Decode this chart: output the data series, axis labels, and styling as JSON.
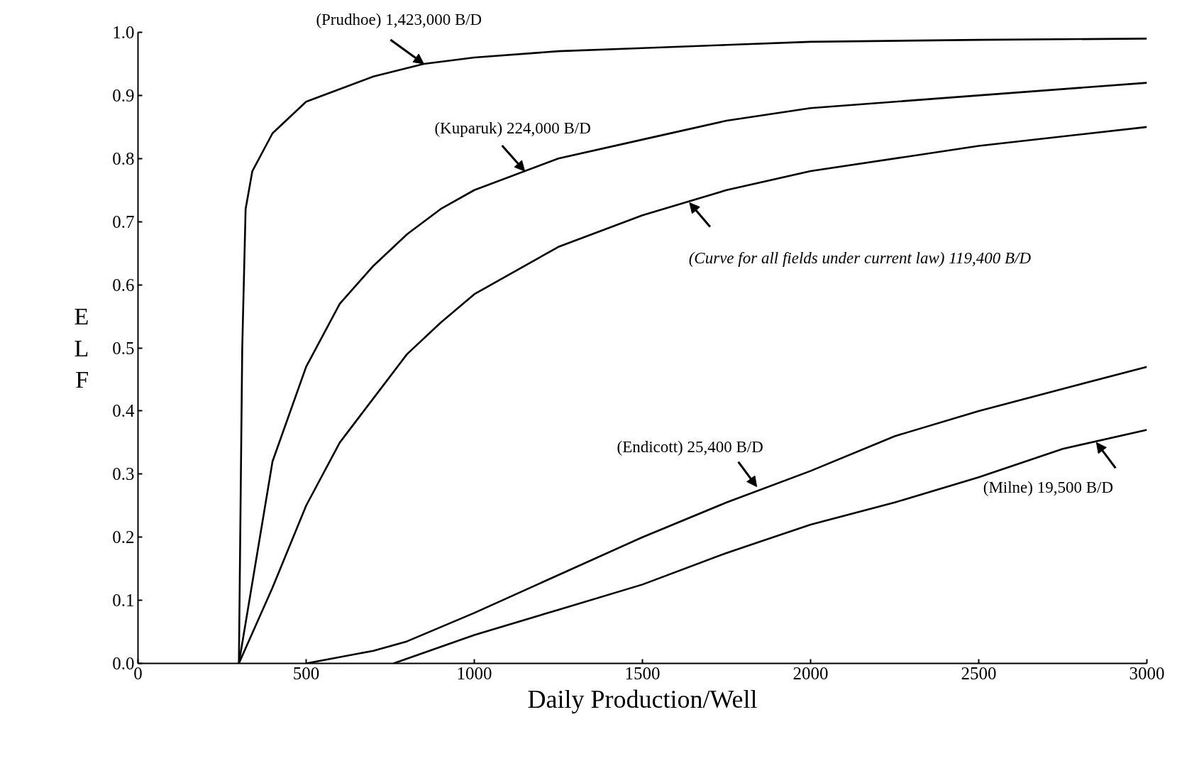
{
  "chart_data": {
    "type": "line",
    "xlabel": "Daily Production/Well",
    "ylabel": "ELF",
    "xlim": [
      0,
      3000
    ],
    "ylim": [
      0,
      1.0
    ],
    "xticks": [
      0,
      500,
      1000,
      1500,
      2000,
      2500,
      3000
    ],
    "yticks": [
      {
        "value": 0,
        "label": "0.0"
      },
      0.1,
      0.2,
      0.3,
      0.4,
      0.5,
      0.6,
      0.7,
      0.8,
      0.9,
      {
        "value": 1.0,
        "label": "1.0"
      }
    ],
    "grid": false,
    "series": [
      {
        "color": "#000000",
        "x": [
          300,
          310,
          320,
          340,
          400,
          500,
          600,
          700,
          850,
          1000,
          1250,
          1500,
          1750,
          2000,
          2500,
          3000
        ],
        "values": [
          0,
          0.5,
          0.72,
          0.78,
          0.84,
          0.89,
          0.91,
          0.93,
          0.95,
          0.96,
          0.97,
          0.975,
          0.98,
          0.985,
          0.988,
          0.99
        ]
      },
      {
        "color": "#000000",
        "x": [
          300,
          400,
          500,
          600,
          700,
          800,
          900,
          1000,
          1250,
          1500,
          1750,
          2000,
          2500,
          3000
        ],
        "values": [
          0,
          0.32,
          0.47,
          0.57,
          0.63,
          0.68,
          0.72,
          0.75,
          0.8,
          0.83,
          0.86,
          0.88,
          0.9,
          0.92
        ]
      },
      {
        "color": "#000000",
        "x": [
          300,
          400,
          500,
          600,
          700,
          800,
          900,
          1000,
          1250,
          1500,
          1750,
          2000,
          2500,
          3000
        ],
        "values": [
          0,
          0.12,
          0.25,
          0.35,
          0.42,
          0.49,
          0.54,
          0.585,
          0.66,
          0.71,
          0.75,
          0.78,
          0.82,
          0.85
        ]
      },
      {
        "color": "#000000",
        "x": [
          500,
          700,
          800,
          1000,
          1250,
          1500,
          1750,
          2000,
          2250,
          2500,
          2750,
          3000
        ],
        "values": [
          0,
          0.02,
          0.035,
          0.08,
          0.14,
          0.2,
          0.255,
          0.305,
          0.36,
          0.4,
          0.435,
          0.47
        ]
      },
      {
        "color": "#000000",
        "x": [
          760,
          1000,
          1250,
          1500,
          1750,
          2000,
          2250,
          2500,
          2750,
          3000
        ],
        "values": [
          0,
          0.045,
          0.085,
          0.125,
          0.175,
          0.22,
          0.255,
          0.295,
          0.34,
          0.37
        ]
      }
    ],
    "annotations": [
      {
        "text": "(Prudhoe) 1,423,000 B/D",
        "x": 850,
        "y": 0.95
      },
      {
        "text": "(Kuparuk) 224,000 B/D",
        "x": 1150,
        "y": 0.78
      },
      {
        "text": "(Curve for all fields under current law) 119,400 B/D",
        "x": 1640,
        "y": 0.73
      },
      {
        "text": "(Endicott) 25,400 B/D",
        "x": 1840,
        "y": 0.28
      },
      {
        "text": "(Milne) 19,500 B/D",
        "x": 2850,
        "y": 0.35
      }
    ]
  }
}
